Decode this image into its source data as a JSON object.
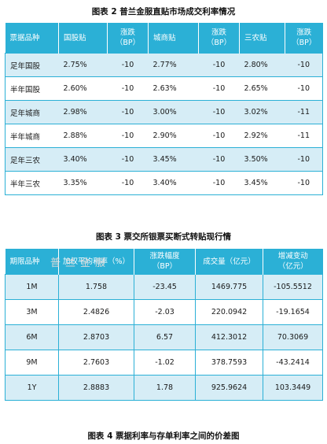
{
  "table1": {
    "caption": "图表 2  普兰金服直贴市场成交利率情况",
    "headers": [
      "票据品种",
      "国股贴",
      "涨跌\n（BP）",
      "城商贴",
      "涨跌\n（BP）",
      "三农贴",
      "涨跌\n（BP）"
    ],
    "rows": [
      [
        "足年国股",
        "2.75%",
        "-10",
        "2.77%",
        "-10",
        "2.80%",
        "-10"
      ],
      [
        "半年国股",
        "2.60%",
        "-10",
        "2.63%",
        "-10",
        "2.65%",
        "-10"
      ],
      [
        "足年城商",
        "2.98%",
        "-10",
        "3.00%",
        "-10",
        "3.02%",
        "-11"
      ],
      [
        "半年城商",
        "2.88%",
        "-10",
        "2.90%",
        "-10",
        "2.92%",
        "-11"
      ],
      [
        "足年三农",
        "3.40%",
        "-10",
        "3.45%",
        "-10",
        "3.50%",
        "-10"
      ],
      [
        "半年三农",
        "3.35%",
        "-10",
        "3.40%",
        "-10",
        "3.45%",
        "-10"
      ]
    ]
  },
  "table2": {
    "caption": "图表 3  票交所银票买断式转贴现行情",
    "headers": [
      "期限品种",
      "加权平均利率（%）",
      "涨跌幅度\n（BP）",
      "成交量（亿元）",
      "增减变动\n（亿元）"
    ],
    "rows": [
      [
        "1M",
        "1.758",
        "-23.45",
        "1469.775",
        "-105.5512"
      ],
      [
        "3M",
        "2.4826",
        "-2.03",
        "220.0942",
        "-19.1654"
      ],
      [
        "6M",
        "2.8703",
        "6.57",
        "412.3012",
        "70.3069"
      ],
      [
        "9M",
        "2.7603",
        "-1.02",
        "378.7593",
        "-43.2414"
      ],
      [
        "1Y",
        "2.8883",
        "1.78",
        "925.9624",
        "103.3449"
      ]
    ]
  },
  "figure4": {
    "caption": "图表 4  票据利率与存单利率之间的价差图"
  },
  "watermark": "普兰金服"
}
